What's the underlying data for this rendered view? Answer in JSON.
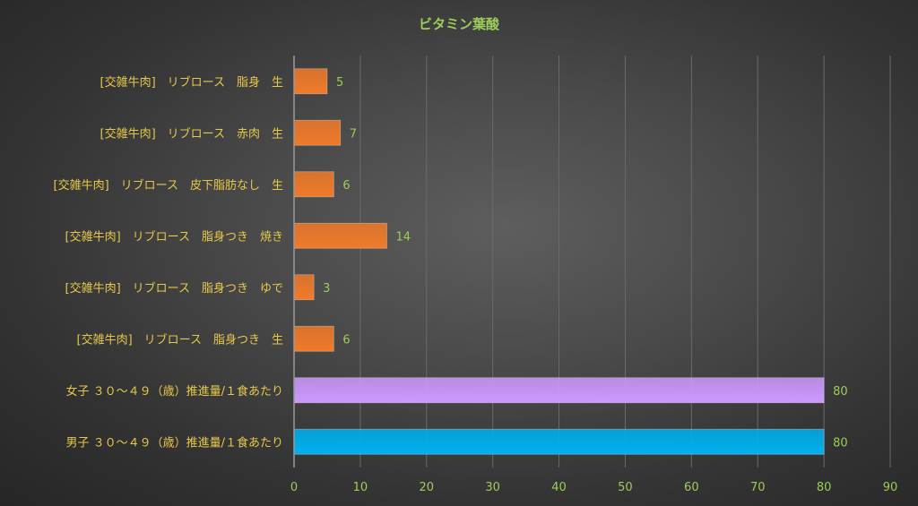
{
  "chart_data": {
    "type": "bar",
    "orientation": "horizontal",
    "title": "ビタミン葉酸",
    "xlabel": "",
    "ylabel": "",
    "xlim": [
      0,
      90
    ],
    "x_ticks": [
      0,
      10,
      20,
      30,
      40,
      50,
      60,
      70,
      80,
      90
    ],
    "grid": true,
    "legend": "none",
    "categories": [
      "[交雑牛肉]　リブロース　脂身　生",
      "[交雑牛肉]　リブロース　赤肉　生",
      "[交雑牛肉]　リブロース　皮下脂肪なし　生",
      "[交雑牛肉]　リブロース　脂身つき　焼き",
      "[交雑牛肉]　リブロース　脂身つき　ゆで",
      "[交雑牛肉]　リブロース　脂身つき　生",
      "女子 ３０～４９（歳）推進量/１食あたり",
      "男子 ３０～４９（歳）推進量/１食あたり"
    ],
    "values": [
      5,
      7,
      6,
      14,
      3,
      6,
      80,
      80
    ],
    "value_labels": [
      "5",
      "7",
      "6",
      "14",
      "3",
      "6",
      "80",
      "80"
    ],
    "bar_colors": [
      "#f07a2a",
      "#f07a2a",
      "#f07a2a",
      "#f07a2a",
      "#f07a2a",
      "#f07a2a",
      "#cc99ff",
      "#00b0f0"
    ]
  }
}
